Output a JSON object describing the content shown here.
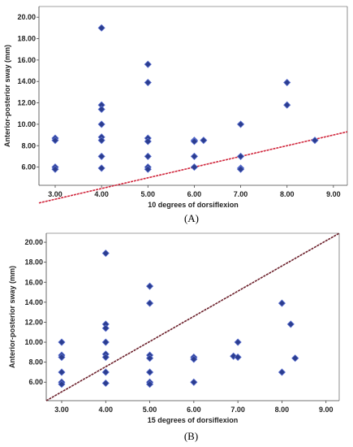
{
  "chart_data": [
    {
      "type": "scatter",
      "panel_label": "(A)",
      "xlabel": "10 degrees of dorsiflexion",
      "ylabel": "Anterior-posterior sway (mm)",
      "xlim": [
        2.65,
        9.3
      ],
      "ylim": [
        4.3,
        21.0
      ],
      "x_ticks": [
        "3.00",
        "4.00",
        "5.00",
        "6.00",
        "7.00",
        "8.00",
        "9.00"
      ],
      "y_ticks": [
        "6.00",
        "8.00",
        "10.00",
        "12.00",
        "14.00",
        "16.00",
        "18.00",
        "20.00"
      ],
      "grid": false,
      "reference_line": {
        "from": [
          2.65,
          2.65
        ],
        "to": [
          9.3,
          9.3
        ],
        "color": "#d0263c"
      },
      "marker_color": "#2b3d8f",
      "points": [
        {
          "x": 3.0,
          "y": 8.7
        },
        {
          "x": 3.0,
          "y": 8.5
        },
        {
          "x": 3.0,
          "y": 6.0
        },
        {
          "x": 3.0,
          "y": 5.8
        },
        {
          "x": 4.0,
          "y": 19.0
        },
        {
          "x": 4.0,
          "y": 11.8
        },
        {
          "x": 4.0,
          "y": 11.4
        },
        {
          "x": 4.0,
          "y": 10.0
        },
        {
          "x": 4.0,
          "y": 8.8
        },
        {
          "x": 4.0,
          "y": 8.5
        },
        {
          "x": 4.0,
          "y": 7.0
        },
        {
          "x": 4.0,
          "y": 5.9
        },
        {
          "x": 5.0,
          "y": 15.6
        },
        {
          "x": 5.0,
          "y": 13.9
        },
        {
          "x": 5.0,
          "y": 8.7
        },
        {
          "x": 5.0,
          "y": 8.4
        },
        {
          "x": 5.0,
          "y": 7.0
        },
        {
          "x": 5.0,
          "y": 6.0
        },
        {
          "x": 5.0,
          "y": 5.8
        },
        {
          "x": 6.0,
          "y": 8.5
        },
        {
          "x": 6.0,
          "y": 8.4
        },
        {
          "x": 6.2,
          "y": 8.5
        },
        {
          "x": 6.0,
          "y": 7.0
        },
        {
          "x": 6.0,
          "y": 6.0
        },
        {
          "x": 7.0,
          "y": 10.0
        },
        {
          "x": 7.0,
          "y": 7.0
        },
        {
          "x": 7.0,
          "y": 5.9
        },
        {
          "x": 7.0,
          "y": 5.8
        },
        {
          "x": 8.0,
          "y": 13.9
        },
        {
          "x": 8.0,
          "y": 11.8
        },
        {
          "x": 8.6,
          "y": 8.5
        }
      ]
    },
    {
      "type": "scatter",
      "panel_label": "(B)",
      "xlabel": "15 degrees of dorsiflexion",
      "ylabel": "Anterior-posterior sway (mm)",
      "xlim": [
        2.65,
        9.3
      ],
      "ylim": [
        4.15,
        20.9
      ],
      "x_ticks": [
        "3.00",
        "4.00",
        "5.00",
        "6.00",
        "7.00",
        "8.00",
        "9.00"
      ],
      "y_ticks": [
        "6.00",
        "8.00",
        "10.00",
        "12.00",
        "14.00",
        "16.00",
        "18.00",
        "20.00"
      ],
      "grid": false,
      "reference_line": {
        "from": [
          2.65,
          4.15
        ],
        "to": [
          9.3,
          20.9
        ],
        "color": "#6b1f2a"
      },
      "marker_color": "#2b3d8f",
      "points": [
        {
          "x": 3.0,
          "y": 10.0
        },
        {
          "x": 3.0,
          "y": 8.7
        },
        {
          "x": 3.0,
          "y": 8.5
        },
        {
          "x": 3.0,
          "y": 7.0
        },
        {
          "x": 3.0,
          "y": 6.0
        },
        {
          "x": 3.0,
          "y": 5.8
        },
        {
          "x": 4.0,
          "y": 18.9
        },
        {
          "x": 4.0,
          "y": 11.8
        },
        {
          "x": 4.0,
          "y": 11.4
        },
        {
          "x": 4.0,
          "y": 10.0
        },
        {
          "x": 4.0,
          "y": 8.8
        },
        {
          "x": 4.0,
          "y": 8.5
        },
        {
          "x": 4.0,
          "y": 7.0
        },
        {
          "x": 4.0,
          "y": 5.9
        },
        {
          "x": 5.0,
          "y": 15.6
        },
        {
          "x": 5.0,
          "y": 13.9
        },
        {
          "x": 5.0,
          "y": 8.7
        },
        {
          "x": 5.0,
          "y": 8.4
        },
        {
          "x": 5.0,
          "y": 7.0
        },
        {
          "x": 5.0,
          "y": 6.0
        },
        {
          "x": 5.0,
          "y": 5.8
        },
        {
          "x": 6.0,
          "y": 8.5
        },
        {
          "x": 6.0,
          "y": 8.3
        },
        {
          "x": 6.0,
          "y": 6.0
        },
        {
          "x": 6.9,
          "y": 8.6
        },
        {
          "x": 7.0,
          "y": 8.5
        },
        {
          "x": 7.0,
          "y": 10.0
        },
        {
          "x": 8.0,
          "y": 13.9
        },
        {
          "x": 8.2,
          "y": 11.8
        },
        {
          "x": 8.0,
          "y": 7.0
        },
        {
          "x": 8.3,
          "y": 8.4
        }
      ]
    }
  ]
}
